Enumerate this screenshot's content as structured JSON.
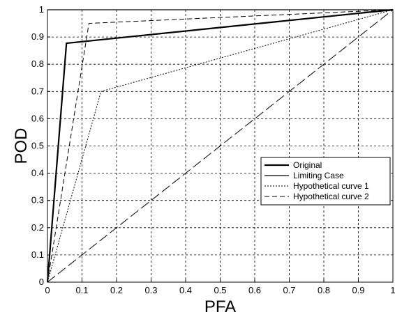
{
  "chart_data": {
    "type": "line",
    "title": "",
    "xlabel": "PFA",
    "ylabel": "POD",
    "xlim": [
      0,
      1
    ],
    "ylim": [
      0,
      1
    ],
    "xticks": [
      "0",
      "0.1",
      "0.2",
      "0.3",
      "0.4",
      "0.5",
      "0.6",
      "0.7",
      "0.8",
      "0.9",
      "1"
    ],
    "yticks": [
      "0",
      "0.1",
      "0.2",
      "0.3",
      "0.4",
      "0.5",
      "0.6",
      "0.7",
      "0.8",
      "0.9",
      "1"
    ],
    "grid": true,
    "legend_position": "center-right",
    "series": [
      {
        "name": "Original",
        "style": "solid-thick",
        "color": "#000000",
        "x": [
          0,
          0.055,
          1
        ],
        "y": [
          0,
          0.877,
          1
        ]
      },
      {
        "name": "Limiting Case",
        "style": "solid-thin",
        "color": "#000000",
        "x": [
          0,
          1
        ],
        "y": [
          1,
          1
        ]
      },
      {
        "name": "Hypothetical curve 1",
        "style": "dotted",
        "color": "#000000",
        "x": [
          0,
          0.155,
          1
        ],
        "y": [
          0,
          0.7,
          1
        ]
      },
      {
        "name": "Hypothetical curve 2",
        "style": "dashed",
        "color": "#000000",
        "x": [
          0,
          0.12,
          1
        ],
        "y": [
          0,
          0.95,
          1
        ]
      },
      {
        "name": "",
        "style": "long-dash",
        "color": "#000000",
        "x": [
          0,
          1
        ],
        "y": [
          0,
          1
        ]
      }
    ]
  }
}
